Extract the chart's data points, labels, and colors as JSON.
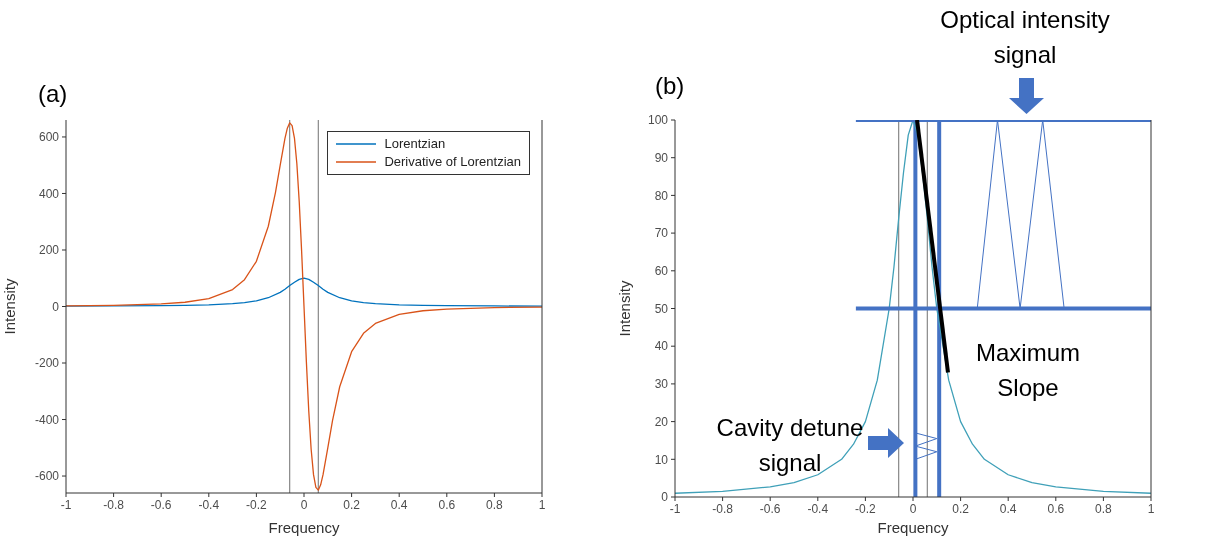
{
  "chart_data": [
    {
      "type": "line",
      "title": "(a)",
      "xlabel": "Frequency",
      "ylabel": "Intensity",
      "xlim": [
        -1,
        1
      ],
      "xticks": [
        -1,
        -0.8,
        -0.6,
        -0.4,
        -0.2,
        0,
        0.2,
        0.4,
        0.6,
        0.8,
        1
      ],
      "ylim": [
        -660,
        660
      ],
      "yticks": [
        -600,
        -400,
        -200,
        0,
        200,
        400,
        600
      ],
      "grid": false,
      "legend": "top right",
      "marker": "none",
      "ref_lines": [
        {
          "axis": "x",
          "value": -0.06,
          "color": "#707070"
        },
        {
          "axis": "x",
          "value": 0.06,
          "color": "#707070"
        }
      ],
      "series": [
        {
          "name": "Lorentzian",
          "color": "#0072bd",
          "x": [
            -1,
            -0.8,
            -0.6,
            -0.5,
            -0.4,
            -0.3,
            -0.25,
            -0.2,
            -0.15,
            -0.1,
            -0.08,
            -0.06,
            -0.04,
            -0.02,
            0,
            0.02,
            0.04,
            0.06,
            0.08,
            0.1,
            0.15,
            0.2,
            0.25,
            0.3,
            0.4,
            0.5,
            0.6,
            0.8,
            1
          ],
          "values": [
            1,
            2,
            3,
            4,
            6,
            10,
            14,
            20,
            31,
            50,
            61,
            74,
            86,
            96,
            100,
            96,
            86,
            74,
            61,
            50,
            31,
            20,
            14,
            10,
            6,
            4,
            3,
            2,
            1
          ]
        },
        {
          "name": "Derivative of Lorentzian",
          "color": "#d95319",
          "x": [
            -1,
            -0.8,
            -0.6,
            -0.5,
            -0.4,
            -0.3,
            -0.25,
            -0.2,
            -0.15,
            -0.12,
            -0.1,
            -0.08,
            -0.07,
            -0.06,
            -0.05,
            -0.04,
            -0.03,
            -0.02,
            -0.01,
            0,
            0.01,
            0.02,
            0.03,
            0.04,
            0.05,
            0.06,
            0.07,
            0.08,
            0.1,
            0.12,
            0.15,
            0.2,
            0.25,
            0.3,
            0.4,
            0.5,
            0.6,
            0.8,
            1
          ],
          "values": [
            2,
            4,
            9,
            15,
            28,
            60,
            95,
            160,
            284,
            403,
            500,
            595,
            631,
            650,
            640,
            595,
            505,
            370,
            196,
            0,
            -196,
            -370,
            -505,
            -595,
            -640,
            -650,
            -631,
            -595,
            -500,
            -403,
            -284,
            -160,
            -95,
            -60,
            -28,
            -15,
            -9,
            -4,
            -2
          ]
        }
      ]
    },
    {
      "type": "line",
      "title": "(b)",
      "xlabel": "Frequency",
      "ylabel": "Intensity",
      "xlim": [
        -1,
        1
      ],
      "xticks": [
        -1,
        -0.8,
        -0.6,
        -0.4,
        -0.2,
        0,
        0.2,
        0.4,
        0.6,
        0.8,
        1
      ],
      "ylim": [
        0,
        100
      ],
      "yticks": [
        0,
        10,
        20,
        30,
        40,
        50,
        60,
        70,
        80,
        90,
        100
      ],
      "grid": false,
      "marker": "none",
      "annotations": [
        "Optical intensity signal",
        "Maximum Slope",
        "Cavity detune signal"
      ],
      "ref_lines": [
        {
          "axis": "x",
          "value": -0.06,
          "color": "#707070"
        },
        {
          "axis": "x",
          "value": 0.01,
          "color": "#4472c4"
        },
        {
          "axis": "x",
          "value": 0.06,
          "color": "#707070"
        },
        {
          "axis": "x",
          "value": 0.11,
          "color": "#4472c4"
        }
      ],
      "series": [
        {
          "color": "#3fa0b8",
          "x": [
            -1,
            -0.8,
            -0.6,
            -0.5,
            -0.4,
            -0.3,
            -0.25,
            -0.2,
            -0.15,
            -0.1,
            -0.08,
            -0.06,
            -0.04,
            -0.02,
            0,
            0.02,
            0.04,
            0.06,
            0.08,
            0.1,
            0.15,
            0.2,
            0.25,
            0.3,
            0.4,
            0.5,
            0.6,
            0.8,
            1
          ],
          "values": [
            1,
            1.5,
            2.7,
            3.8,
            5.9,
            10,
            14,
            20,
            31,
            50,
            61,
            74,
            86,
            96,
            100,
            96,
            86,
            74,
            61,
            50,
            31,
            20,
            14,
            10,
            5.9,
            3.8,
            2.7,
            1.5,
            1
          ]
        },
        {
          "color": "#4472c4",
          "x": [
            -0.24,
            1
          ],
          "values": [
            100,
            100
          ]
        },
        {
          "color": "#4472c4",
          "x": [
            -0.24,
            1
          ],
          "values": [
            50,
            50
          ]
        },
        {
          "color": "#000000",
          "x": [
            0.017,
            0.147
          ],
          "values": [
            100,
            33
          ]
        },
        {
          "color": "#4472c4",
          "x": [
            0.27,
            0.355,
            0.45,
            0.545,
            0.635
          ],
          "values": [
            50,
            100,
            50,
            100,
            50
          ]
        },
        {
          "color": "#4472c4",
          "x": [
            0.01,
            0.1,
            0.01,
            0.1,
            0.01
          ],
          "values": [
            17,
            15.5,
            13.5,
            12,
            10
          ]
        }
      ]
    }
  ]
}
